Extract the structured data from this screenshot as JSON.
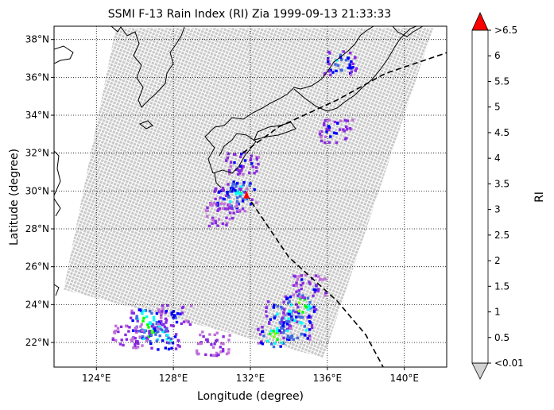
{
  "figure": {
    "title": "SSMI F-13 Rain Index (RI) Zia 1999-09-13 21:33:33",
    "xlabel": "Longitude (degree)",
    "ylabel": "Latitude (degree)"
  },
  "map": {
    "lon_range": [
      121.8,
      142.2
    ],
    "lat_range": [
      20.7,
      38.7
    ],
    "lon_ticks": [
      124,
      128,
      132,
      136,
      140
    ],
    "lat_ticks": [
      22,
      24,
      26,
      28,
      30,
      32,
      34,
      36,
      38
    ],
    "lon_tick_labels": [
      "124°E",
      "128°E",
      "132°E",
      "136°E",
      "140°E"
    ],
    "lat_tick_labels": [
      "22°N",
      "24°N",
      "26°N",
      "28°N",
      "30°N",
      "32°N",
      "34°N",
      "36°N",
      "38°N"
    ],
    "swath_corners": [
      [
        125.0,
        38.6
      ],
      [
        141.5,
        38.6
      ],
      [
        135.8,
        21.2
      ],
      [
        122.3,
        24.8
      ]
    ],
    "swath_color": "#c8c8c8",
    "storm_center": [
      131.8,
      29.8
    ],
    "track": [
      [
        132.0,
        21.0
      ],
      [
        131.6,
        32.0
      ],
      [
        133.5,
        33.4
      ],
      [
        136.5,
        34.8
      ],
      [
        139.0,
        36.2
      ],
      [
        142.2,
        37.3
      ]
    ],
    "track_south": [
      [
        131.8,
        29.8
      ],
      [
        134.0,
        26.5
      ],
      [
        136.5,
        24.2
      ],
      [
        138.0,
        22.4
      ],
      [
        138.9,
        20.7
      ]
    ]
  },
  "colorbar": {
    "label": "RI",
    "levels": [
      "<0.01",
      "0.5",
      "1",
      "1.5",
      "2",
      "2.5",
      "3",
      "3.5",
      "4",
      "4.5",
      "5",
      "5.5",
      "6",
      ">6.5"
    ],
    "colors": [
      "#c070d8",
      "#8a2be2",
      "#0000ff",
      "#4169e1",
      "#00ffff",
      "#00ff00",
      "#7cfc00",
      "#ffff00",
      "#ffa500",
      "#8b0000",
      "#000000",
      "#000000",
      "#000000"
    ],
    "under_color": "#d3d3d3",
    "over_color": "#ff0000"
  },
  "chart_data": {
    "type": "heatmap",
    "title": "SSMI F-13 Rain Index (RI) Zia 1999-09-13 21:33:33",
    "xlabel": "Longitude (degree)",
    "ylabel": "Latitude (degree)",
    "xlim": [
      121.8,
      142.2
    ],
    "ylim": [
      20.7,
      38.7
    ],
    "rain_cells": [
      {
        "lon": 126.8,
        "lat": 22.6,
        "ri": 3.0
      },
      {
        "lon": 126.5,
        "lat": 23.2,
        "ri": 3.0
      },
      {
        "lon": 127.4,
        "lat": 22.3,
        "ri": 2.5
      },
      {
        "lon": 128.0,
        "lat": 23.4,
        "ri": 1.0
      },
      {
        "lon": 125.5,
        "lat": 22.4,
        "ri": 0.5
      },
      {
        "lon": 133.2,
        "lat": 22.4,
        "ri": 3.0
      },
      {
        "lon": 133.6,
        "lat": 23.6,
        "ri": 2.5
      },
      {
        "lon": 134.3,
        "lat": 22.8,
        "ri": 3.0
      },
      {
        "lon": 134.5,
        "lat": 24.0,
        "ri": 3.5
      },
      {
        "lon": 135.0,
        "lat": 25.0,
        "ri": 1.0
      },
      {
        "lon": 131.4,
        "lat": 30.0,
        "ri": 2.5
      },
      {
        "lon": 130.9,
        "lat": 29.6,
        "ri": 2.0
      },
      {
        "lon": 131.5,
        "lat": 31.5,
        "ri": 1.0
      },
      {
        "lon": 130.5,
        "lat": 28.8,
        "ri": 0.5
      },
      {
        "lon": 136.4,
        "lat": 33.2,
        "ri": 1.0
      },
      {
        "lon": 136.6,
        "lat": 36.8,
        "ri": 2.0
      },
      {
        "lon": 130.0,
        "lat": 22.0,
        "ri": 0.5
      }
    ]
  }
}
